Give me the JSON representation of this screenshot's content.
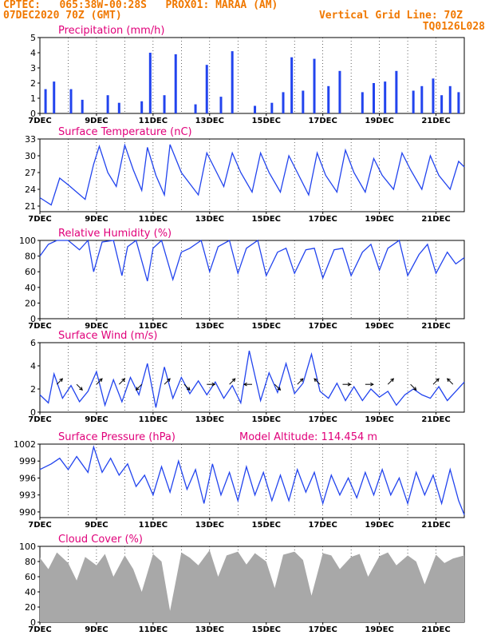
{
  "header": {
    "line1": "CPTEC:   065:38W-00:28S   PROX01: MARAA (AM)",
    "line2_left": "07DEC2020 70Z (GMT)",
    "line2_right": "Vertical Grid Line: 70Z",
    "line3_right": "TQ0126L028"
  },
  "colors": {
    "header": "#f07800",
    "title": "#e0007a",
    "series": "#2244ee",
    "cloud": "#a8a8a8",
    "wind_arrow": "#000000"
  },
  "x_axis": {
    "ticks": [
      "7DEC",
      "9DEC",
      "11DEC",
      "13DEC",
      "15DEC",
      "17DEC",
      "19DEC",
      "21DEC"
    ],
    "range_days": [
      7,
      22
    ]
  },
  "chart_data": [
    {
      "type": "bar",
      "title": "Precipitation (mm/h)",
      "ylim": [
        0,
        5
      ],
      "yticks": [
        0,
        1,
        2,
        3,
        4,
        5
      ],
      "x": [
        7.2,
        7.5,
        8.1,
        8.5,
        9.4,
        9.8,
        10.6,
        10.9,
        11.4,
        11.8,
        12.5,
        12.9,
        13.4,
        13.8,
        14.6,
        15.2,
        15.6,
        15.9,
        16.3,
        16.7,
        17.2,
        17.6,
        18.4,
        18.8,
        19.2,
        19.6,
        20.2,
        20.5,
        20.9,
        21.2,
        21.5,
        21.8
      ],
      "values": [
        1.6,
        2.1,
        1.6,
        0.9,
        1.2,
        0.7,
        0.8,
        4.0,
        1.2,
        3.9,
        0.6,
        3.2,
        1.1,
        4.1,
        0.5,
        0.7,
        1.4,
        3.7,
        1.5,
        3.6,
        1.8,
        2.8,
        1.4,
        2.0,
        2.1,
        2.8,
        1.5,
        1.8,
        2.3,
        1.2,
        1.8,
        1.4
      ]
    },
    {
      "type": "line",
      "title": "Surface Temperature (nC)",
      "ylim": [
        20,
        33
      ],
      "yticks": [
        21,
        24,
        27,
        30,
        33
      ],
      "x": [
        7.0,
        7.4,
        7.7,
        8.0,
        8.3,
        8.6,
        8.9,
        9.1,
        9.4,
        9.7,
        10.0,
        10.3,
        10.6,
        10.8,
        11.1,
        11.4,
        11.6,
        12.0,
        12.3,
        12.6,
        12.9,
        13.2,
        13.5,
        13.8,
        14.1,
        14.5,
        14.8,
        15.1,
        15.5,
        15.8,
        16.1,
        16.5,
        16.8,
        17.1,
        17.5,
        17.8,
        18.1,
        18.5,
        18.8,
        19.1,
        19.5,
        19.8,
        20.1,
        20.5,
        20.8,
        21.1,
        21.5,
        21.8,
        22.0
      ],
      "values": [
        22.5,
        21.2,
        26.0,
        24.8,
        23.5,
        22.2,
        28.5,
        31.7,
        27.0,
        24.5,
        31.9,
        27.5,
        23.8,
        31.5,
        26.5,
        23.0,
        32.0,
        27.0,
        25.0,
        23.0,
        30.5,
        27.5,
        24.5,
        30.5,
        27.0,
        23.5,
        30.5,
        27.0,
        23.5,
        30.0,
        27.0,
        23.0,
        30.5,
        26.5,
        23.5,
        31.0,
        27.0,
        23.5,
        29.5,
        26.5,
        24.0,
        30.5,
        27.5,
        24.0,
        30.0,
        26.5,
        24.0,
        29.0,
        28.0
      ]
    },
    {
      "type": "line",
      "title": "Relative Humidity (%)",
      "ylim": [
        0,
        100
      ],
      "yticks": [
        0,
        20,
        40,
        60,
        80,
        100
      ],
      "x": [
        7.0,
        7.3,
        7.6,
        8.0,
        8.4,
        8.7,
        8.9,
        9.2,
        9.6,
        9.9,
        10.1,
        10.4,
        10.8,
        11.0,
        11.3,
        11.7,
        12.0,
        12.3,
        12.7,
        13.0,
        13.3,
        13.7,
        14.0,
        14.3,
        14.7,
        15.0,
        15.4,
        15.7,
        16.0,
        16.4,
        16.7,
        17.0,
        17.4,
        17.7,
        18.0,
        18.4,
        18.7,
        19.0,
        19.3,
        19.7,
        20.0,
        20.4,
        20.7,
        21.0,
        21.4,
        21.7,
        22.0
      ],
      "values": [
        80,
        95,
        100,
        100,
        88,
        100,
        60,
        98,
        100,
        55,
        92,
        100,
        48,
        90,
        100,
        50,
        85,
        90,
        100,
        60,
        92,
        100,
        58,
        90,
        100,
        55,
        85,
        90,
        58,
        88,
        90,
        52,
        88,
        90,
        55,
        85,
        95,
        62,
        90,
        100,
        55,
        82,
        95,
        58,
        85,
        70,
        78
      ]
    },
    {
      "type": "line",
      "title": "Surface Wind (m/s)",
      "ylim": [
        0,
        6
      ],
      "yticks": [
        0,
        2,
        4,
        6
      ],
      "x": [
        7.0,
        7.3,
        7.5,
        7.8,
        8.1,
        8.4,
        8.7,
        9.0,
        9.3,
        9.6,
        9.9,
        10.2,
        10.5,
        10.8,
        11.1,
        11.4,
        11.7,
        12.0,
        12.3,
        12.6,
        12.9,
        13.2,
        13.5,
        13.8,
        14.1,
        14.4,
        14.8,
        15.1,
        15.4,
        15.7,
        16.0,
        16.3,
        16.6,
        16.9,
        17.2,
        17.5,
        17.8,
        18.1,
        18.4,
        18.7,
        19.0,
        19.3,
        19.6,
        19.9,
        20.2,
        20.5,
        20.8,
        21.1,
        21.4,
        21.7,
        22.0
      ],
      "values": [
        1.5,
        0.8,
        3.3,
        1.2,
        2.3,
        0.9,
        1.8,
        3.5,
        0.6,
        2.8,
        0.9,
        3.0,
        1.5,
        4.2,
        0.4,
        3.9,
        1.2,
        3.0,
        1.6,
        2.7,
        1.5,
        2.6,
        1.2,
        2.3,
        0.8,
        5.3,
        1.0,
        3.4,
        1.7,
        4.2,
        1.6,
        2.5,
        5.0,
        1.8,
        1.2,
        2.5,
        1.0,
        2.2,
        1.0,
        2.0,
        1.3,
        1.8,
        0.6,
        1.5,
        2.0,
        1.5,
        1.2,
        2.2,
        1.0,
        1.8,
        2.6
      ],
      "arrows": {
        "x": [
          7.6,
          8.3,
          9.0,
          9.8,
          10.6,
          11.4,
          12.1,
          12.9,
          13.7,
          14.5,
          15.3,
          16.1,
          16.9,
          17.7,
          18.5,
          19.3,
          20.1,
          20.9,
          21.6
        ],
        "u": [
          1,
          1,
          1,
          1,
          -1,
          1,
          1,
          1,
          1,
          -1,
          1,
          1,
          -1,
          1,
          1,
          1,
          1,
          1,
          -1
        ],
        "v": [
          1,
          -1,
          1,
          1,
          -1,
          1,
          -1,
          0,
          1,
          0,
          -1,
          1,
          1,
          0,
          0,
          1,
          -1,
          1,
          1
        ]
      }
    },
    {
      "type": "line",
      "title": "Surface Pressure (hPa)",
      "subtitle": "Model Altitude: 114.454 m",
      "ylim": [
        989,
        1002
      ],
      "yticks": [
        990,
        993,
        996,
        999,
        1002
      ],
      "x": [
        7.0,
        7.4,
        7.7,
        8.0,
        8.3,
        8.7,
        8.9,
        9.2,
        9.5,
        9.8,
        10.1,
        10.4,
        10.7,
        11.0,
        11.3,
        11.6,
        11.9,
        12.2,
        12.5,
        12.8,
        13.1,
        13.4,
        13.7,
        14.0,
        14.3,
        14.6,
        14.9,
        15.2,
        15.5,
        15.8,
        16.1,
        16.4,
        16.7,
        17.0,
        17.3,
        17.6,
        17.9,
        18.2,
        18.5,
        18.8,
        19.1,
        19.4,
        19.7,
        20.0,
        20.3,
        20.6,
        20.9,
        21.2,
        21.5,
        21.8,
        22.0
      ],
      "values": [
        997.5,
        998.5,
        999.5,
        997.5,
        999.8,
        997.0,
        1001.5,
        997.0,
        999.5,
        996.5,
        998.5,
        994.5,
        996.5,
        993.0,
        998.0,
        993.5,
        999.0,
        994.0,
        997.5,
        991.5,
        998.5,
        993.0,
        997.0,
        992.0,
        998.0,
        993.0,
        997.0,
        992.0,
        996.5,
        992.0,
        997.5,
        993.5,
        997.0,
        991.5,
        996.5,
        993.0,
        996.0,
        992.5,
        997.0,
        993.0,
        997.5,
        993.0,
        996.0,
        991.5,
        997.0,
        993.0,
        996.5,
        991.5,
        997.5,
        992.0,
        989.5
      ]
    },
    {
      "type": "area",
      "title": "Cloud Cover (%)",
      "ylim": [
        0,
        100
      ],
      "yticks": [
        0,
        20,
        40,
        60,
        80,
        100
      ],
      "x": [
        7.0,
        7.3,
        7.6,
        8.0,
        8.3,
        8.6,
        9.0,
        9.3,
        9.6,
        10.0,
        10.3,
        10.6,
        11.0,
        11.3,
        11.6,
        12.0,
        12.3,
        12.6,
        13.0,
        13.3,
        13.6,
        14.0,
        14.3,
        14.6,
        15.0,
        15.3,
        15.6,
        16.0,
        16.3,
        16.6,
        17.0,
        17.3,
        17.6,
        18.0,
        18.3,
        18.6,
        19.0,
        19.3,
        19.6,
        20.0,
        20.3,
        20.6,
        21.0,
        21.3,
        21.6,
        22.0
      ],
      "values": [
        85,
        70,
        92,
        78,
        55,
        86,
        75,
        90,
        60,
        88,
        70,
        40,
        90,
        80,
        15,
        92,
        85,
        75,
        95,
        60,
        88,
        93,
        76,
        91,
        80,
        45,
        89,
        93,
        82,
        35,
        91,
        88,
        70,
        86,
        90,
        60,
        87,
        92,
        75,
        88,
        80,
        50,
        89,
        78,
        84,
        88
      ]
    }
  ]
}
